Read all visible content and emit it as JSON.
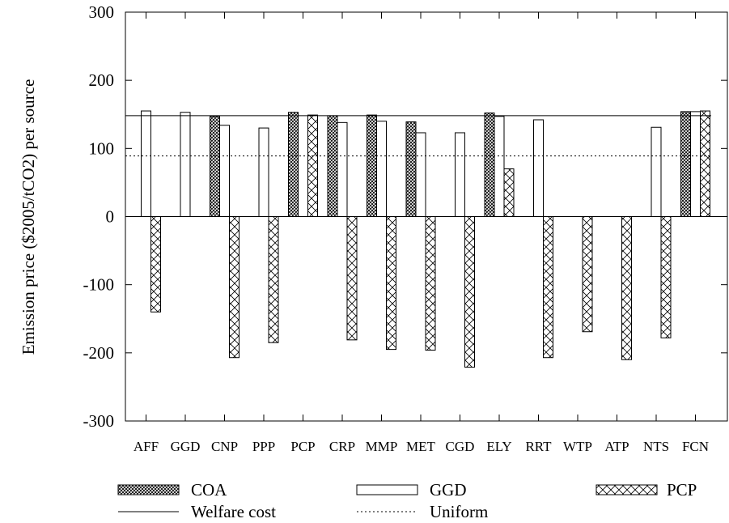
{
  "chart_data": {
    "type": "bar",
    "ylabel": "Emission price ($2005/tCO2) per source",
    "ylim": [
      -300,
      300
    ],
    "yticks": [
      -300,
      -200,
      -100,
      0,
      100,
      200,
      300
    ],
    "yticks_labels": [
      "-300",
      "-200",
      "-100",
      "0",
      "100",
      "200",
      "300"
    ],
    "categories": [
      "AFF",
      "GGD",
      "CNP",
      "PPP",
      "PCP",
      "CRP",
      "MMP",
      "MET",
      "CGD",
      "ELY",
      "RRT",
      "WTP",
      "ATP",
      "NTS",
      "FCN"
    ],
    "series": [
      {
        "name": "COA",
        "pattern": "dense-crosshatch",
        "values": [
          null,
          null,
          147,
          null,
          153,
          148,
          149,
          139,
          null,
          152,
          null,
          null,
          null,
          null,
          154
        ]
      },
      {
        "name": "GGD",
        "pattern": "empty",
        "values": [
          155,
          153,
          134,
          130,
          null,
          138,
          140,
          123,
          123,
          147,
          142,
          null,
          null,
          131,
          154
        ]
      },
      {
        "name": "PCP",
        "pattern": "wide-crosshatch",
        "values": [
          -140,
          null,
          -207,
          -185,
          149,
          -181,
          -195,
          -196,
          -221,
          70,
          -207,
          -169,
          -210,
          -178,
          155
        ]
      }
    ],
    "lines": [
      {
        "name": "Welfare cost",
        "style": "solid",
        "y": 148
      },
      {
        "name": "Uniform",
        "style": "dotted",
        "y": 89
      }
    ],
    "legend": {
      "placement": "bottom",
      "entries": [
        "COA",
        "GGD",
        "PCP",
        "Welfare cost",
        "Uniform"
      ]
    },
    "grid": false
  }
}
